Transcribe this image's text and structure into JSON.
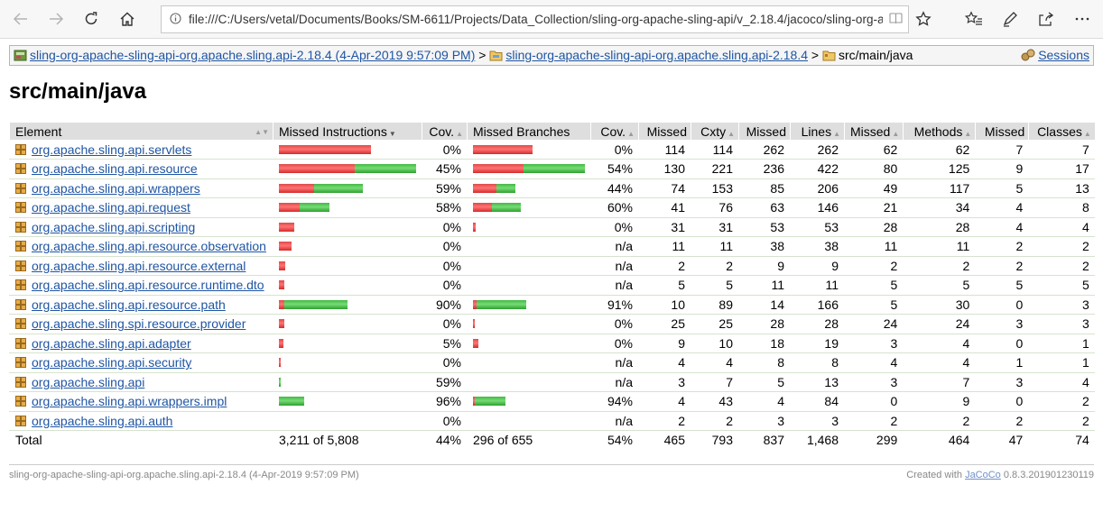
{
  "browser": {
    "url": "file:///C:/Users/vetal/Documents/Books/SM-6611/Projects/Data_Collection/sling-org-apache-sling-api/v_2.18.4/jacoco/sling-org-apache-sling-api-2.18.4/src/main/java/index.html",
    "buttons": {
      "back": "back-arrow-icon",
      "forward": "forward-arrow-icon",
      "refresh": "refresh-icon",
      "home": "home-icon",
      "reading": "reading-view-icon",
      "favorite": "star-icon",
      "favorites": "favorites-list-icon",
      "notes": "pen-icon",
      "share": "share-icon",
      "more": "more-icon"
    }
  },
  "breadcrumb": {
    "session_label": "sling-org-apache-sling-api-org.apache.sling.api-2.18.4 (4-Apr-2019 9:57:09 PM)",
    "bundle_label": "sling-org-apache-sling-api-org.apache.sling.api-2.18.4",
    "current": "src/main/java",
    "separator": ">",
    "sessions_label": "Sessions"
  },
  "page_title": "src/main/java",
  "table": {
    "headers": [
      "Element",
      "Missed Instructions",
      "Cov.",
      "Missed Branches",
      "Cov.",
      "Missed",
      "Cxty",
      "Missed",
      "Lines",
      "Missed",
      "Methods",
      "Missed",
      "Classes"
    ],
    "rows": [
      {
        "name": "org.apache.sling.api.servlets",
        "instr_missed": 1.0,
        "instr_covered": 0.0,
        "instr_cov": "0%",
        "br_missed": 1.0,
        "br_covered": 0.0,
        "br_cov": "0%",
        "cx_missed": "114",
        "cxty": "114",
        "ln_missed": "262",
        "lines": "262",
        "m_missed": "62",
        "methods": "62",
        "c_missed": "7",
        "classes": "7"
      },
      {
        "name": "org.apache.sling.api.resource",
        "instr_missed": 0.82,
        "instr_covered": 0.67,
        "instr_cov": "45%",
        "br_missed": 0.85,
        "br_covered": 1.03,
        "br_cov": "54%",
        "cx_missed": "130",
        "cxty": "221",
        "ln_missed": "236",
        "lines": "422",
        "m_missed": "80",
        "methods": "125",
        "c_missed": "9",
        "classes": "17"
      },
      {
        "name": "org.apache.sling.api.wrappers",
        "instr_missed": 0.38,
        "instr_covered": 0.53,
        "instr_cov": "59%",
        "br_missed": 0.4,
        "br_covered": 0.32,
        "br_cov": "44%",
        "cx_missed": "74",
        "cxty": "153",
        "ln_missed": "85",
        "lines": "206",
        "m_missed": "49",
        "methods": "117",
        "c_missed": "5",
        "classes": "13"
      },
      {
        "name": "org.apache.sling.api.request",
        "instr_missed": 0.23,
        "instr_covered": 0.32,
        "instr_cov": "58%",
        "br_missed": 0.32,
        "br_covered": 0.48,
        "br_cov": "60%",
        "cx_missed": "41",
        "cxty": "76",
        "ln_missed": "63",
        "lines": "146",
        "m_missed": "21",
        "methods": "34",
        "c_missed": "4",
        "classes": "8"
      },
      {
        "name": "org.apache.sling.api.scripting",
        "instr_missed": 0.17,
        "instr_covered": 0.0,
        "instr_cov": "0%",
        "br_missed": 0.05,
        "br_covered": 0.0,
        "br_cov": "0%",
        "cx_missed": "31",
        "cxty": "31",
        "ln_missed": "53",
        "lines": "53",
        "m_missed": "28",
        "methods": "28",
        "c_missed": "4",
        "classes": "4"
      },
      {
        "name": "org.apache.sling.api.resource.observation",
        "instr_missed": 0.14,
        "instr_covered": 0.0,
        "instr_cov": "0%",
        "br_missed": 0.0,
        "br_covered": 0.0,
        "br_cov": "n/a",
        "cx_missed": "11",
        "cxty": "11",
        "ln_missed": "38",
        "lines": "38",
        "m_missed": "11",
        "methods": "11",
        "c_missed": "2",
        "classes": "2"
      },
      {
        "name": "org.apache.sling.api.resource.external",
        "instr_missed": 0.07,
        "instr_covered": 0.0,
        "instr_cov": "0%",
        "br_missed": 0.0,
        "br_covered": 0.0,
        "br_cov": "n/a",
        "cx_missed": "2",
        "cxty": "2",
        "ln_missed": "9",
        "lines": "9",
        "m_missed": "2",
        "methods": "2",
        "c_missed": "2",
        "classes": "2"
      },
      {
        "name": "org.apache.sling.api.resource.runtime.dto",
        "instr_missed": 0.06,
        "instr_covered": 0.0,
        "instr_cov": "0%",
        "br_missed": 0.0,
        "br_covered": 0.0,
        "br_cov": "n/a",
        "cx_missed": "5",
        "cxty": "5",
        "ln_missed": "11",
        "lines": "11",
        "m_missed": "5",
        "methods": "5",
        "c_missed": "5",
        "classes": "5"
      },
      {
        "name": "org.apache.sling.api.resource.path",
        "instr_missed": 0.06,
        "instr_covered": 0.69,
        "instr_cov": "90%",
        "br_missed": 0.06,
        "br_covered": 0.84,
        "br_cov": "91%",
        "cx_missed": "10",
        "cxty": "89",
        "ln_missed": "14",
        "lines": "166",
        "m_missed": "5",
        "methods": "30",
        "c_missed": "0",
        "classes": "3"
      },
      {
        "name": "org.apache.sling.spi.resource.provider",
        "instr_missed": 0.06,
        "instr_covered": 0.0,
        "instr_cov": "0%",
        "br_missed": 0.02,
        "br_covered": 0.0,
        "br_cov": "0%",
        "cx_missed": "25",
        "cxty": "25",
        "ln_missed": "28",
        "lines": "28",
        "m_missed": "24",
        "methods": "24",
        "c_missed": "3",
        "classes": "3"
      },
      {
        "name": "org.apache.sling.api.adapter",
        "instr_missed": 0.05,
        "instr_covered": 0.0,
        "instr_cov": "5%",
        "br_missed": 0.09,
        "br_covered": 0.0,
        "br_cov": "0%",
        "cx_missed": "9",
        "cxty": "10",
        "ln_missed": "18",
        "lines": "19",
        "m_missed": "3",
        "methods": "4",
        "c_missed": "0",
        "classes": "1"
      },
      {
        "name": "org.apache.sling.api.security",
        "instr_missed": 0.02,
        "instr_covered": 0.0,
        "instr_cov": "0%",
        "br_missed": 0.0,
        "br_covered": 0.0,
        "br_cov": "n/a",
        "cx_missed": "4",
        "cxty": "4",
        "ln_missed": "8",
        "lines": "8",
        "m_missed": "4",
        "methods": "4",
        "c_missed": "1",
        "classes": "1"
      },
      {
        "name": "org.apache.sling.api",
        "instr_missed": 0.0,
        "instr_covered": 0.02,
        "instr_cov": "59%",
        "br_missed": 0.0,
        "br_covered": 0.0,
        "br_cov": "n/a",
        "cx_missed": "3",
        "cxty": "7",
        "ln_missed": "5",
        "lines": "13",
        "m_missed": "3",
        "methods": "7",
        "c_missed": "3",
        "classes": "4"
      },
      {
        "name": "org.apache.sling.api.wrappers.impl",
        "instr_missed": 0.0,
        "instr_covered": 0.27,
        "instr_cov": "96%",
        "br_missed": 0.02,
        "br_covered": 0.52,
        "br_cov": "94%",
        "cx_missed": "4",
        "cxty": "43",
        "ln_missed": "4",
        "lines": "84",
        "m_missed": "0",
        "methods": "9",
        "c_missed": "0",
        "classes": "2"
      },
      {
        "name": "org.apache.sling.api.auth",
        "instr_missed": 0.0,
        "instr_covered": 0.0,
        "instr_cov": "0%",
        "br_missed": 0.0,
        "br_covered": 0.0,
        "br_cov": "n/a",
        "cx_missed": "2",
        "cxty": "2",
        "ln_missed": "3",
        "lines": "3",
        "m_missed": "2",
        "methods": "2",
        "c_missed": "2",
        "classes": "2"
      }
    ],
    "total": {
      "label": "Total",
      "instr": "3,211 of 5,808",
      "instr_cov": "44%",
      "br": "296 of 655",
      "br_cov": "54%",
      "cx_missed": "465",
      "cxty": "793",
      "ln_missed": "837",
      "lines": "1,468",
      "m_missed": "299",
      "methods": "464",
      "c_missed": "47",
      "classes": "74"
    }
  },
  "footer": {
    "left": "sling-org-apache-sling-api-org.apache.sling.api-2.18.4 (4-Apr-2019 9:57:09 PM)",
    "created_with": "Created with",
    "jacoco_link": "JaCoCo",
    "version": "0.8.3.201901230119"
  },
  "colors": {
    "link": "#1f55a3",
    "bar_red": "#e04949",
    "bar_green": "#43b843",
    "header_bg": "#dedede"
  }
}
